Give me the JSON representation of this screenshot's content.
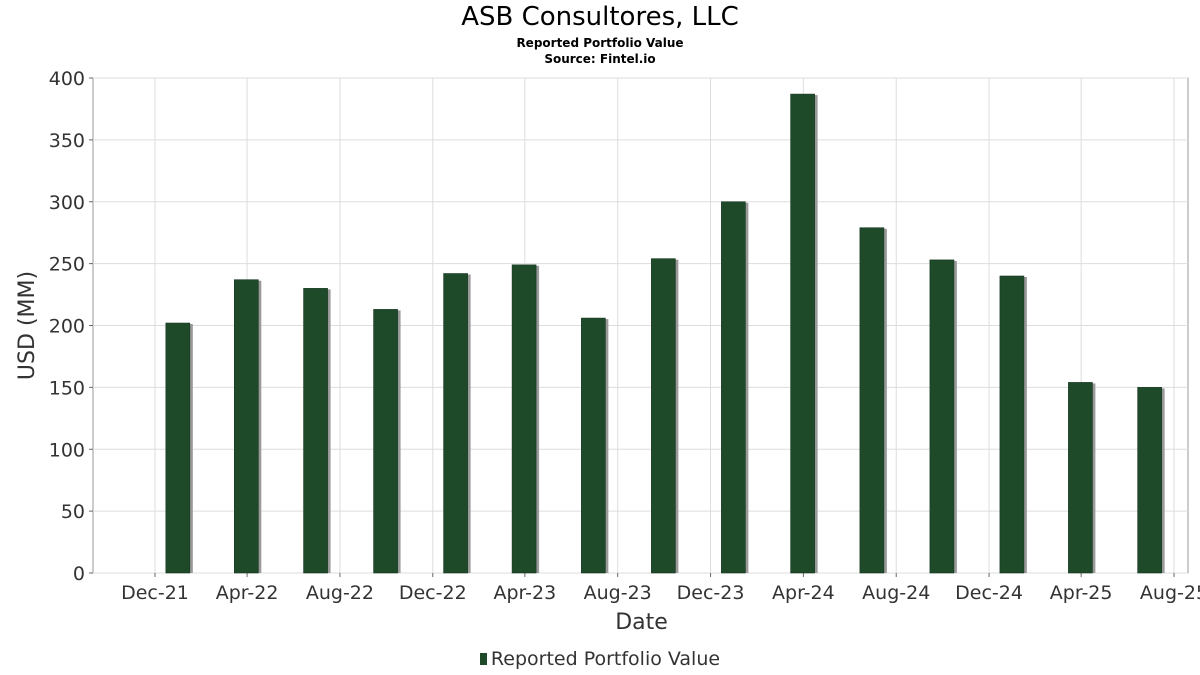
{
  "header": {
    "title": "ASB Consultores, LLC",
    "subtitle": "Reported Portfolio Value",
    "source": "Source: Fintel.io"
  },
  "legend": {
    "label": "Reported Portfolio Value"
  },
  "colors": {
    "bar": "#1f4a2a",
    "bar_shadow": "#9a9a9a",
    "grid": "#dddddd",
    "frame": "#999999"
  },
  "chart_data": {
    "type": "bar",
    "title": "ASB Consultores, LLC",
    "subtitle": "Reported Portfolio Value",
    "xlabel": "Date",
    "ylabel": "USD (MM)",
    "ylim": [
      0,
      400
    ],
    "yticks": [
      0,
      50,
      100,
      150,
      200,
      250,
      300,
      350,
      400
    ],
    "xticks": [
      "Dec-21",
      "Apr-22",
      "Aug-22",
      "Dec-22",
      "Apr-23",
      "Aug-23",
      "Dec-23",
      "Apr-24",
      "Aug-24",
      "Dec-24",
      "Apr-25",
      "Aug-25"
    ],
    "grid": true,
    "legend_position": "bottom",
    "series": [
      {
        "name": "Reported Portfolio Value",
        "x": [
          "2021-12-31",
          "2022-03-31",
          "2022-06-30",
          "2022-09-30",
          "2022-12-31",
          "2023-03-31",
          "2023-06-30",
          "2023-09-30",
          "2023-12-31",
          "2024-03-31",
          "2024-06-30",
          "2024-09-30",
          "2024-12-31",
          "2025-03-31",
          "2025-06-30"
        ],
        "values": [
          202,
          237,
          230,
          213,
          242,
          249,
          206,
          254,
          300,
          387,
          279,
          253,
          240,
          154,
          150
        ]
      }
    ]
  }
}
